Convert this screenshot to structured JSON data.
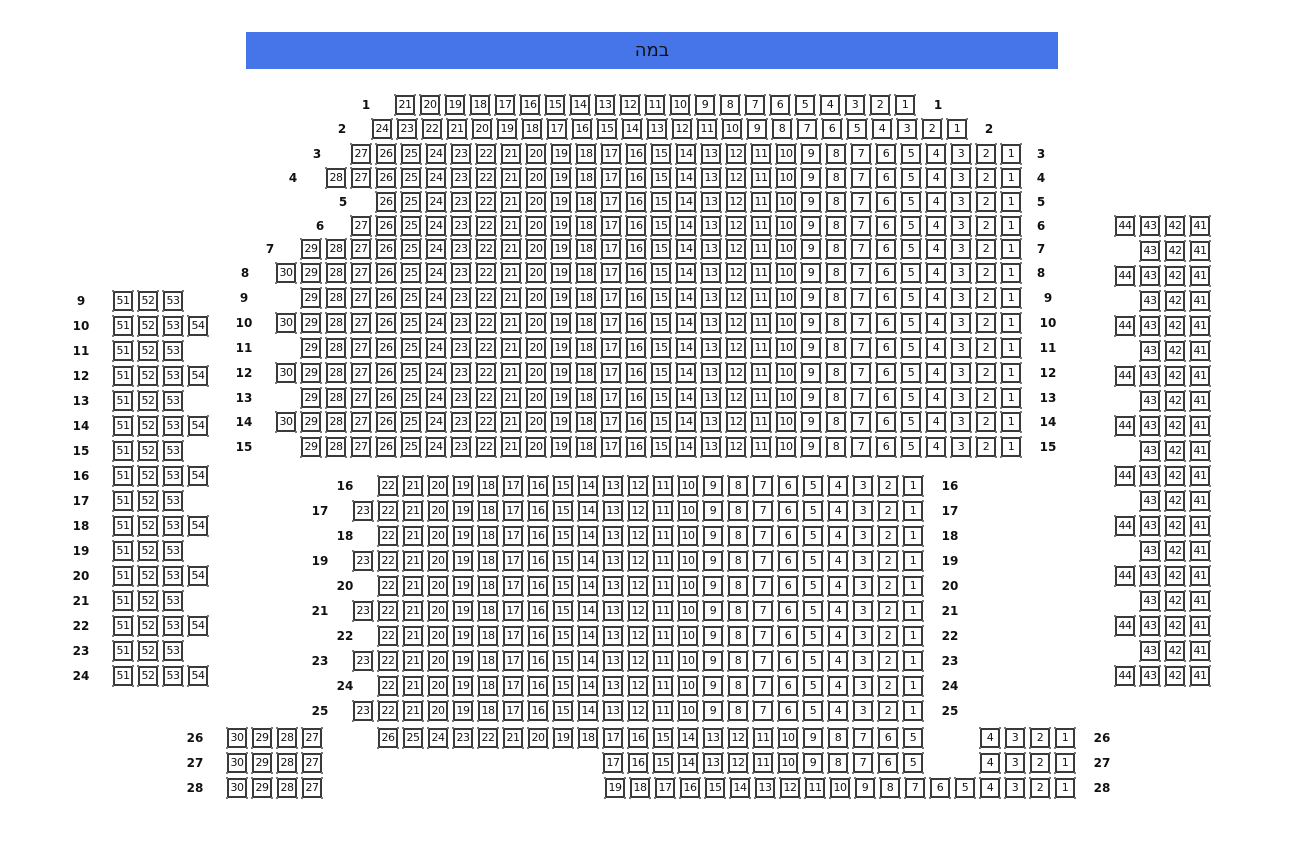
{
  "stage": {
    "label": "במה",
    "color": "#4575e8"
  },
  "sections": [
    {
      "id": "main-upper",
      "labels": "both",
      "rows": [
        {
          "row": 1,
          "from": 21,
          "to": 1
        },
        {
          "row": 2,
          "from": 24,
          "to": 1
        },
        {
          "row": 3,
          "from": 27,
          "to": 1
        },
        {
          "row": 4,
          "from": 28,
          "to": 1
        },
        {
          "row": 5,
          "from": 26,
          "to": 1
        },
        {
          "row": 6,
          "from": 27,
          "to": 1
        },
        {
          "row": 7,
          "from": 29,
          "to": 1
        },
        {
          "row": 8,
          "from": 30,
          "to": 1
        },
        {
          "row": 9,
          "from": 29,
          "to": 1
        },
        {
          "row": 10,
          "from": 30,
          "to": 1
        },
        {
          "row": 11,
          "from": 29,
          "to": 1
        },
        {
          "row": 12,
          "from": 30,
          "to": 1
        },
        {
          "row": 13,
          "from": 29,
          "to": 1
        },
        {
          "row": 14,
          "from": 30,
          "to": 1
        },
        {
          "row": 15,
          "from": 29,
          "to": 1
        }
      ]
    },
    {
      "id": "main-lower",
      "labels": "both",
      "rows": [
        {
          "row": 16,
          "from": 22,
          "to": 1
        },
        {
          "row": 17,
          "from": 23,
          "to": 1
        },
        {
          "row": 18,
          "from": 22,
          "to": 1
        },
        {
          "row": 19,
          "from": 23,
          "to": 1
        },
        {
          "row": 20,
          "from": 22,
          "to": 1
        },
        {
          "row": 21,
          "from": 23,
          "to": 1
        },
        {
          "row": 22,
          "from": 22,
          "to": 1
        },
        {
          "row": 23,
          "from": 23,
          "to": 1
        },
        {
          "row": 24,
          "from": 22,
          "to": 1
        },
        {
          "row": 25,
          "from": 23,
          "to": 1
        }
      ]
    },
    {
      "id": "rear-center",
      "labels": "both",
      "rows": [
        {
          "row": 26,
          "from": 26,
          "to": 5
        },
        {
          "row": 27,
          "from": 17,
          "to": 5
        },
        {
          "row": 28,
          "from": 19,
          "to": 1
        }
      ]
    },
    {
      "id": "rear-left",
      "labels": "none",
      "rows": [
        {
          "row": 26,
          "from": 30,
          "to": 27
        },
        {
          "row": 27,
          "from": 30,
          "to": 27
        },
        {
          "row": 28,
          "from": 30,
          "to": 27
        }
      ]
    },
    {
      "id": "rear-right",
      "labels": "none",
      "rows": [
        {
          "row": 26,
          "from": 4,
          "to": 1
        },
        {
          "row": 27,
          "from": 4,
          "to": 1
        }
      ]
    },
    {
      "id": "left-wing",
      "labels": "left",
      "rows": [
        {
          "row": 9,
          "from": 51,
          "to": 53
        },
        {
          "row": 10,
          "from": 51,
          "to": 54
        },
        {
          "row": 11,
          "from": 51,
          "to": 53
        },
        {
          "row": 12,
          "from": 51,
          "to": 54
        },
        {
          "row": 13,
          "from": 51,
          "to": 53
        },
        {
          "row": 14,
          "from": 51,
          "to": 54
        },
        {
          "row": 15,
          "from": 51,
          "to": 53
        },
        {
          "row": 16,
          "from": 51,
          "to": 54
        },
        {
          "row": 17,
          "from": 51,
          "to": 53
        },
        {
          "row": 18,
          "from": 51,
          "to": 54
        },
        {
          "row": 19,
          "from": 51,
          "to": 53
        },
        {
          "row": 20,
          "from": 51,
          "to": 54
        },
        {
          "row": 21,
          "from": 51,
          "to": 53
        },
        {
          "row": 22,
          "from": 51,
          "to": 54
        },
        {
          "row": 23,
          "from": 51,
          "to": 53
        },
        {
          "row": 24,
          "from": 51,
          "to": 54
        }
      ]
    },
    {
      "id": "right-wing",
      "labels": "none",
      "rows": [
        {
          "row": 6,
          "from": 44,
          "to": 41
        },
        {
          "row": 7,
          "from": 43,
          "to": 41
        },
        {
          "row": 8,
          "from": 44,
          "to": 41
        },
        {
          "row": 9,
          "from": 43,
          "to": 41
        },
        {
          "row": 10,
          "from": 44,
          "to": 41
        },
        {
          "row": 11,
          "from": 43,
          "to": 41
        },
        {
          "row": 12,
          "from": 44,
          "to": 41
        },
        {
          "row": 13,
          "from": 43,
          "to": 41
        },
        {
          "row": 14,
          "from": 44,
          "to": 41
        },
        {
          "row": 15,
          "from": 43,
          "to": 41
        },
        {
          "row": 16,
          "from": 44,
          "to": 41
        },
        {
          "row": 17,
          "from": 43,
          "to": 41
        },
        {
          "row": 18,
          "from": 44,
          "to": 41
        },
        {
          "row": 19,
          "from": 43,
          "to": 41
        },
        {
          "row": 20,
          "from": 44,
          "to": 41
        },
        {
          "row": 21,
          "from": 43,
          "to": 41
        },
        {
          "row": 22,
          "from": 44,
          "to": 41
        },
        {
          "row": 23,
          "from": 43,
          "to": 41
        },
        {
          "row": 24,
          "from": 44,
          "to": 41
        }
      ]
    }
  ]
}
